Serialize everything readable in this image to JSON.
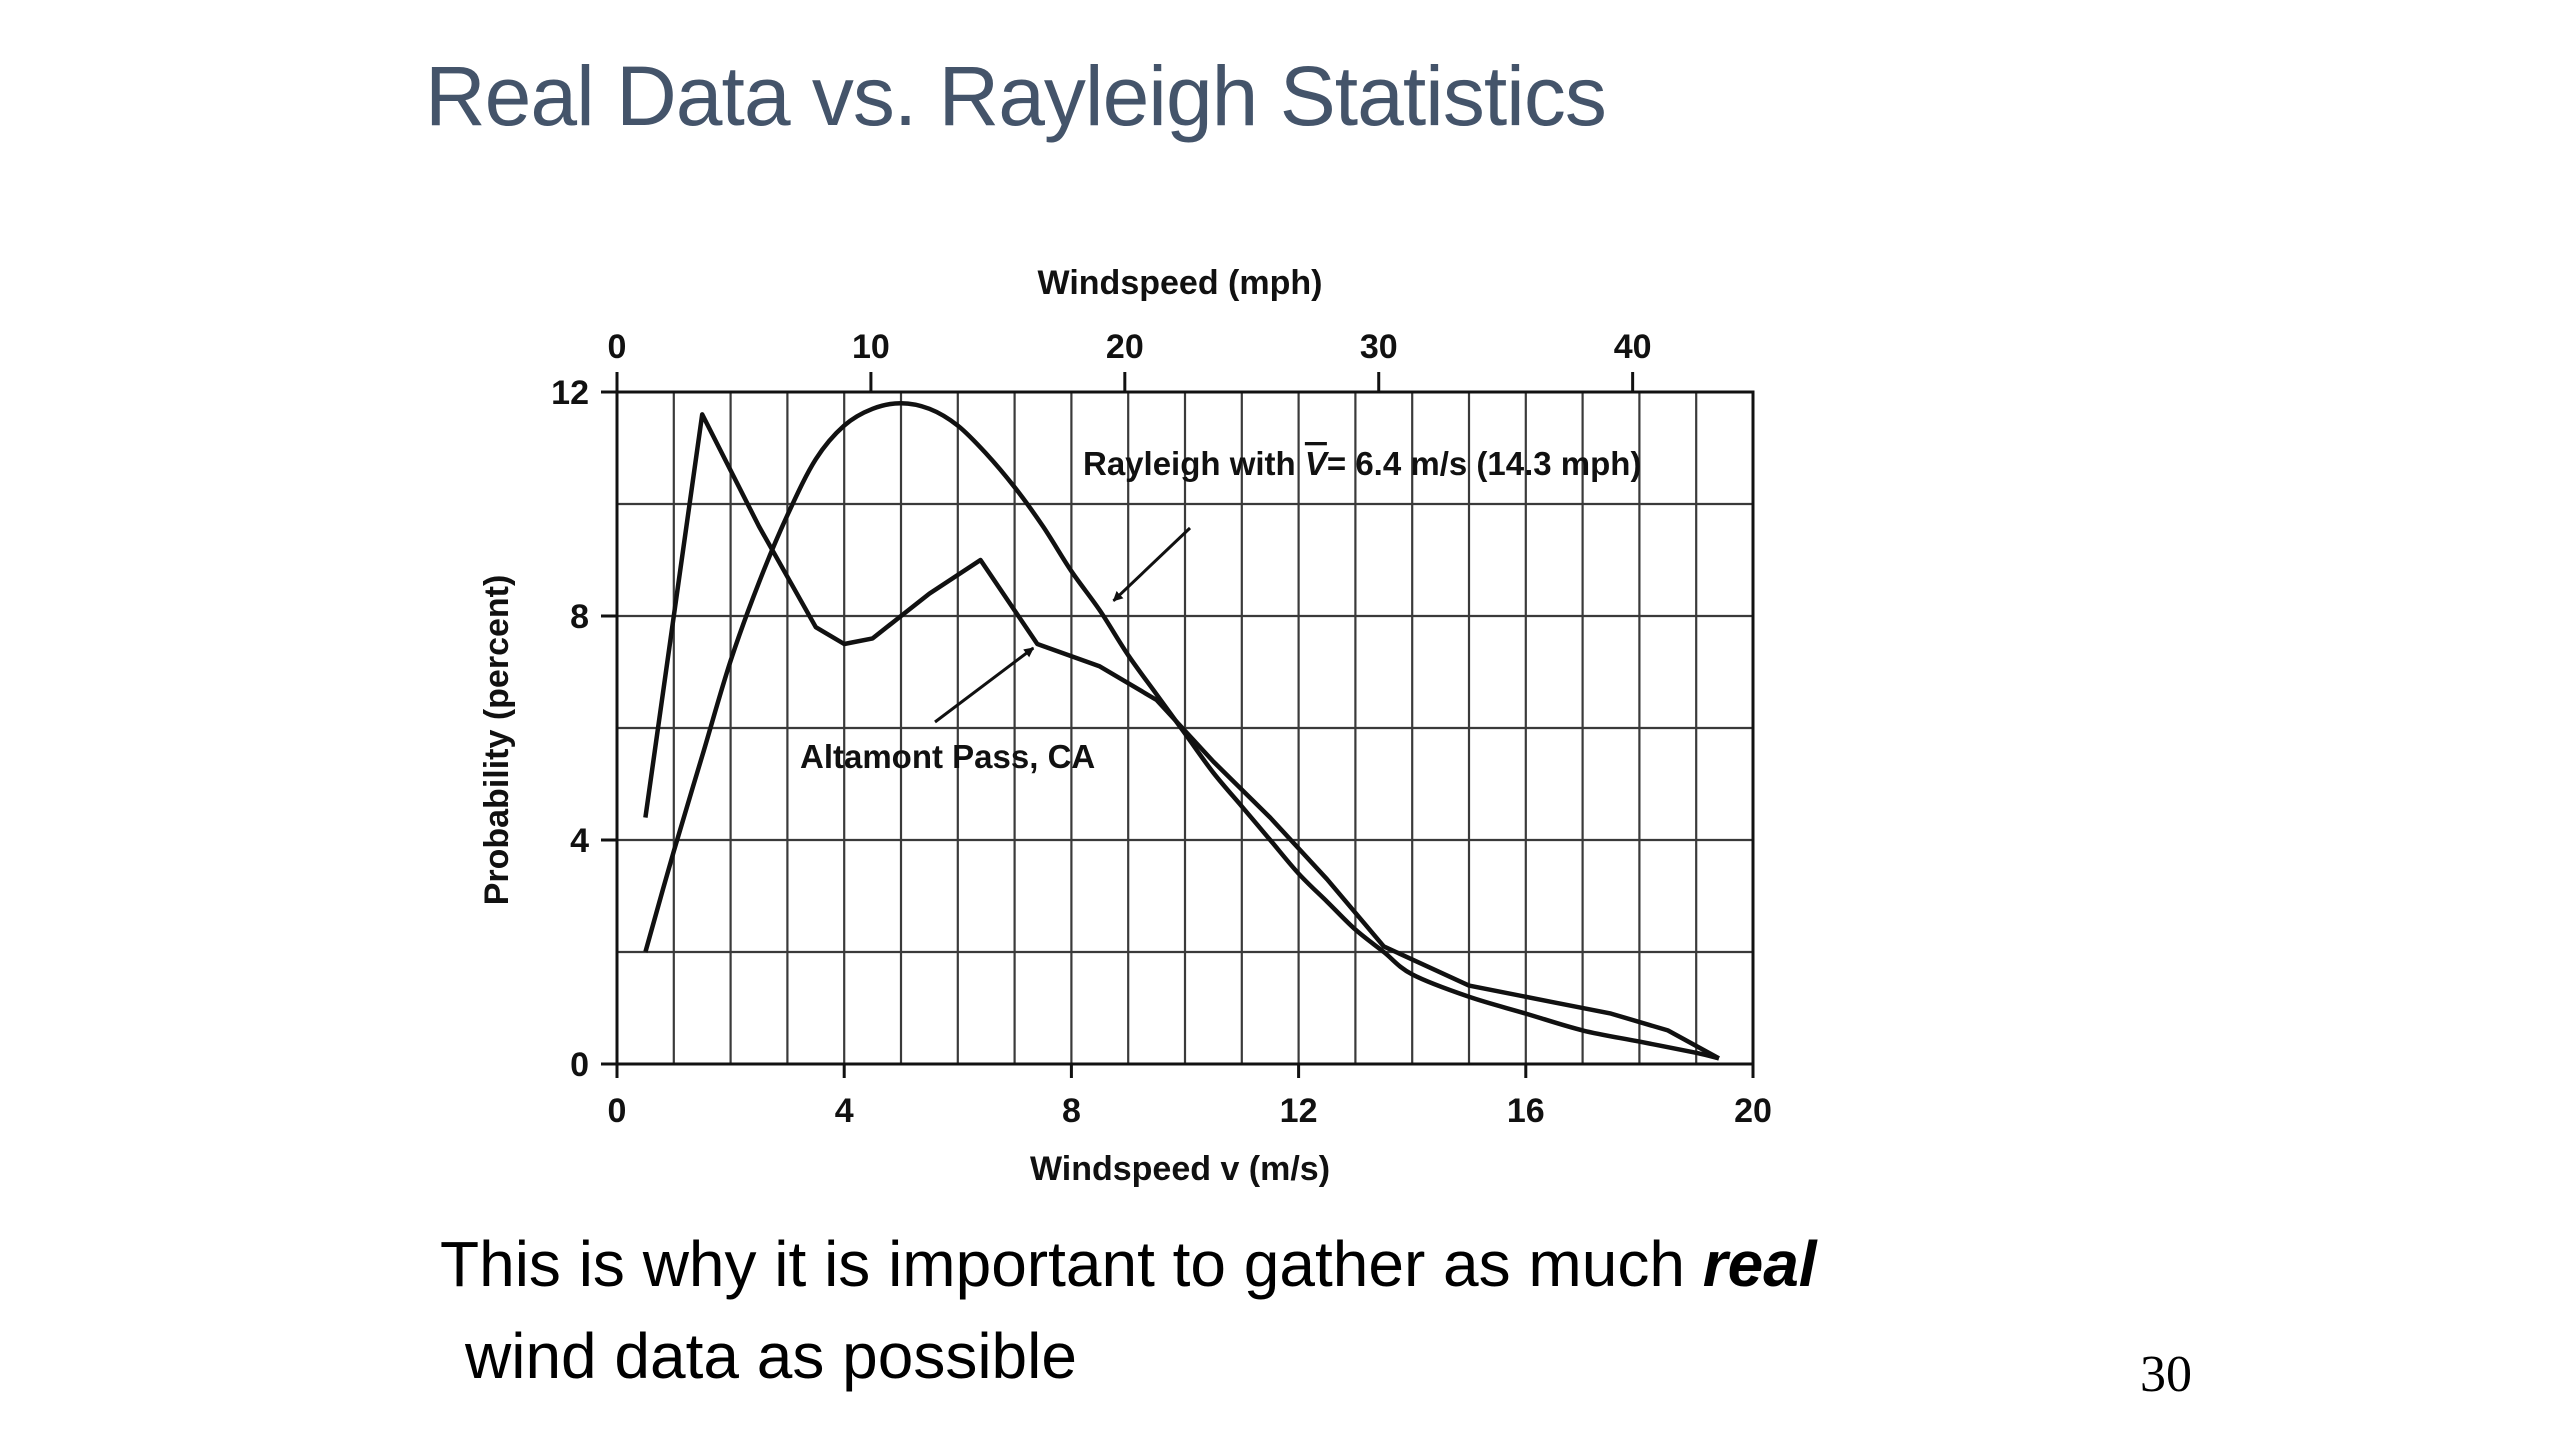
{
  "slide": {
    "title": "Real Data vs. Rayleigh Statistics",
    "caption_part1": "This is why it is important to gather as much ",
    "caption_emphasis": "real",
    "caption_part2": "wind data as possible",
    "page_number": "30"
  },
  "chart_data": {
    "type": "line",
    "title": "",
    "xlabel": "Windspeed v (m/s)",
    "ylabel": "Probability (percent)",
    "x2label": "Windspeed (mph)",
    "xlim": [
      0,
      20
    ],
    "ylim": [
      0,
      12
    ],
    "x2lim": [
      0,
      44.74
    ],
    "grid": true,
    "xticks": [
      0,
      4,
      8,
      12,
      16,
      20
    ],
    "yticks": [
      0,
      4,
      8,
      12
    ],
    "x2ticks": [
      0,
      10,
      20,
      30,
      40
    ],
    "series": [
      {
        "name": "Rayleigh with V̄ = 6.4 m/s (14.3 mph)",
        "x": [
          0.5,
          1,
          1.5,
          2,
          2.5,
          3,
          3.5,
          4,
          4.5,
          5,
          5.5,
          6,
          6.5,
          7,
          7.5,
          8,
          8.5,
          9,
          9.5,
          10,
          10.5,
          11,
          11.5,
          12,
          12.5,
          13,
          13.5,
          14,
          15,
          16,
          17,
          18,
          19,
          19.4
        ],
        "y": [
          2.0,
          3.8,
          5.5,
          7.2,
          8.6,
          9.8,
          10.8,
          11.4,
          11.7,
          11.8,
          11.7,
          11.4,
          10.9,
          10.3,
          9.6,
          8.8,
          8.1,
          7.3,
          6.6,
          5.9,
          5.2,
          4.6,
          4.0,
          3.4,
          2.9,
          2.4,
          2.0,
          1.6,
          1.2,
          0.9,
          0.6,
          0.4,
          0.2,
          0.1
        ]
      },
      {
        "name": "Altamont Pass, CA",
        "x": [
          0.5,
          1.5,
          2.5,
          3.5,
          4,
          4.5,
          5,
          5.5,
          6.4,
          7.4,
          8.5,
          9.5,
          10.5,
          11.5,
          12.5,
          13.5,
          15,
          16.5,
          17.5,
          18.5,
          19.4
        ],
        "y": [
          4.4,
          11.6,
          9.6,
          7.8,
          7.5,
          7.6,
          8.0,
          8.4,
          9.0,
          7.5,
          7.1,
          6.5,
          5.4,
          4.4,
          3.3,
          2.1,
          1.4,
          1.1,
          0.9,
          0.6,
          0.1
        ]
      }
    ],
    "annotations": [
      {
        "text": "Rayleigh with ",
        "v_symbol": "V",
        "text_after": "= 6.4 m/s (14.3 mph)",
        "points_to": [
          8.6,
          8.2
        ]
      },
      {
        "text": "Altamont Pass, CA",
        "points_to": [
          7.4,
          7.5
        ]
      }
    ]
  }
}
